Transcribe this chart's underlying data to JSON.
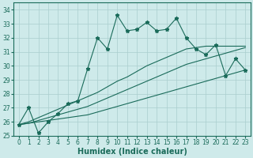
{
  "xlabel": "Humidex (Indice chaleur)",
  "bg_color": "#ceeaea",
  "grid_color": "#aacece",
  "line_color": "#1a6b5a",
  "xlim": [
    -0.5,
    23.5
  ],
  "ylim": [
    25,
    34.5
  ],
  "xticks": [
    0,
    1,
    2,
    3,
    4,
    5,
    6,
    7,
    8,
    9,
    10,
    11,
    12,
    13,
    14,
    15,
    16,
    17,
    18,
    19,
    20,
    21,
    22,
    23
  ],
  "yticks": [
    25,
    26,
    27,
    28,
    29,
    30,
    31,
    32,
    33,
    34
  ],
  "series": {
    "main": [
      25.8,
      27.0,
      25.2,
      26.0,
      26.6,
      27.3,
      27.5,
      29.8,
      32.0,
      31.2,
      33.6,
      32.5,
      32.6,
      33.1,
      32.5,
      32.6,
      33.4,
      32.0,
      31.2,
      30.8,
      31.5,
      29.3,
      30.5,
      29.7
    ],
    "line1": [
      25.8,
      25.9,
      26.0,
      26.1,
      26.2,
      26.3,
      26.4,
      26.5,
      26.7,
      26.9,
      27.1,
      27.3,
      27.5,
      27.7,
      27.9,
      28.1,
      28.3,
      28.5,
      28.7,
      28.9,
      29.1,
      29.3,
      29.5,
      29.7
    ],
    "line2": [
      25.8,
      25.9,
      26.1,
      26.3,
      26.5,
      26.7,
      26.9,
      27.1,
      27.4,
      27.7,
      28.0,
      28.3,
      28.6,
      28.9,
      29.2,
      29.5,
      29.8,
      30.1,
      30.3,
      30.5,
      30.7,
      30.9,
      31.1,
      31.3
    ],
    "line3": [
      25.8,
      26.0,
      26.3,
      26.6,
      26.9,
      27.2,
      27.5,
      27.8,
      28.1,
      28.5,
      28.9,
      29.2,
      29.6,
      30.0,
      30.3,
      30.6,
      30.9,
      31.2,
      31.3,
      31.4,
      31.4,
      31.4,
      31.4,
      31.4
    ]
  },
  "fontsize_label": 7,
  "fontsize_tick": 5.5
}
